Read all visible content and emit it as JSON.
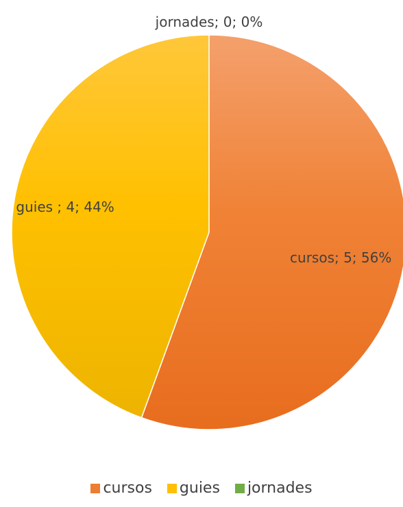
{
  "chart_data": {
    "type": "pie",
    "categories": [
      "cursos",
      "guies",
      "jornades"
    ],
    "values": [
      5,
      4,
      0
    ],
    "percent_labels": [
      "56%",
      "44%",
      "0%"
    ],
    "data_labels": [
      "cursos; 5; 56%",
      "guies ; 4; 44%",
      "jornades; 0; 0%"
    ],
    "colors": [
      "#ED7D31",
      "#FFC000",
      "#70AD47"
    ],
    "legend": {
      "placement": "bottom",
      "entries": [
        "cursos",
        "guies",
        "jornades"
      ]
    }
  }
}
